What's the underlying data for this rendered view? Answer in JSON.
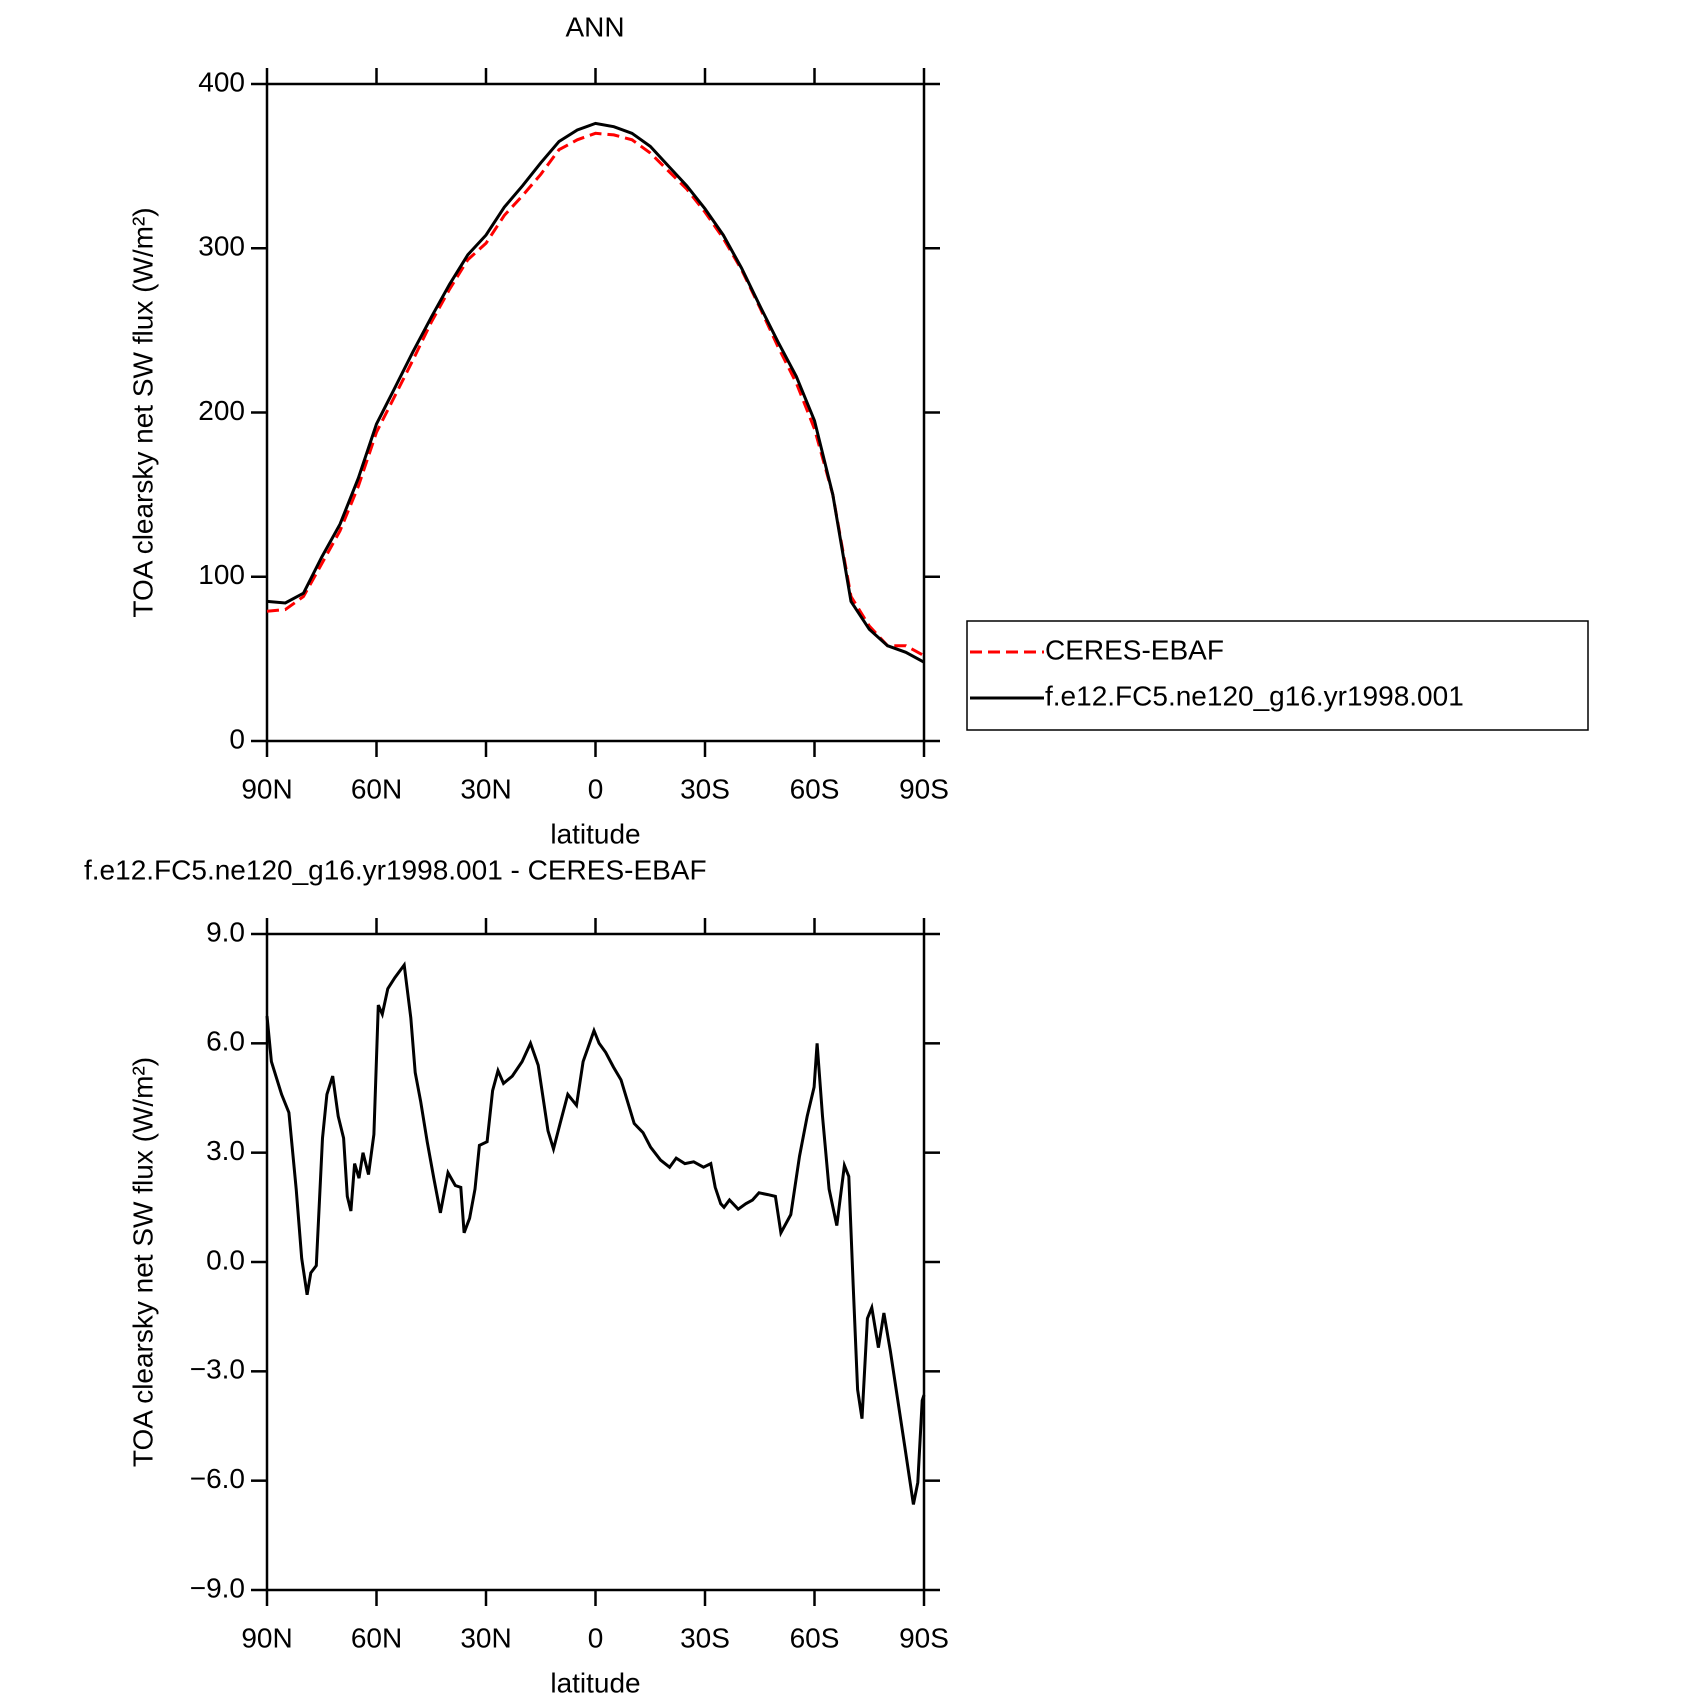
{
  "chart_data": [
    {
      "type": "line",
      "title": "ANN",
      "xlabel": "latitude",
      "ylabel": "TOA clearsky net SW flux (W/m²)",
      "xlim": [
        90,
        -90
      ],
      "xticks": [
        {
          "value": 90,
          "label": "90N"
        },
        {
          "value": 60,
          "label": "60N"
        },
        {
          "value": 30,
          "label": "30N"
        },
        0,
        {
          "value": -30,
          "label": "30S"
        },
        {
          "value": -60,
          "label": "60S"
        },
        {
          "value": -90,
          "label": "90S"
        }
      ],
      "ylim": [
        0,
        400
      ],
      "yticks": [
        0,
        100,
        200,
        300,
        400
      ],
      "x": [
        90,
        85,
        80,
        75,
        70,
        65,
        60,
        55,
        50,
        45,
        40,
        35,
        30,
        25,
        20,
        15,
        10,
        5,
        0,
        -5,
        -10,
        -15,
        -20,
        -25,
        -30,
        -35,
        -40,
        -45,
        -50,
        -55,
        -60,
        -65,
        -70,
        -75,
        -80,
        -85,
        -90
      ],
      "series": [
        {
          "name": "CERES-EBAF",
          "color": "#ff0000",
          "dash": true,
          "values": [
            79,
            80,
            88,
            108,
            128,
            155,
            188,
            210,
            232,
            255,
            275,
            293,
            303,
            320,
            332,
            345,
            360,
            366,
            370,
            369,
            366,
            358,
            347,
            336,
            322,
            306,
            287,
            264,
            240,
            218,
            190,
            150,
            88,
            70,
            58,
            58,
            52
          ]
        },
        {
          "name": "f.e12.FC5.ne120_g16.yr1998.001",
          "color": "#000000",
          "dash": false,
          "values": [
            85,
            84,
            90,
            112,
            132,
            160,
            193,
            215,
            237,
            258,
            278,
            296,
            308,
            325,
            338,
            352,
            365,
            372,
            376,
            374,
            370,
            362,
            350,
            338,
            324,
            308,
            288,
            265,
            243,
            222,
            195,
            150,
            85,
            68,
            58,
            54,
            48
          ]
        }
      ]
    },
    {
      "type": "line",
      "title": "f.e12.FC5.ne120_g16.yr1998.001 - CERES-EBAF",
      "xlabel": "latitude",
      "ylabel": "TOA clearsky net SW flux (W/m²)",
      "xlim": [
        90,
        -90
      ],
      "xticks": [
        {
          "value": 90,
          "label": "90N"
        },
        {
          "value": 60,
          "label": "60N"
        },
        {
          "value": 30,
          "label": "30N"
        },
        0,
        {
          "value": -30,
          "label": "30S"
        },
        {
          "value": -60,
          "label": "60S"
        },
        {
          "value": -90,
          "label": "90S"
        }
      ],
      "ylim": [
        -9,
        9
      ],
      "yticks": [
        {
          "value": -9,
          "label": "−9.0"
        },
        {
          "value": -6,
          "label": "−6.0"
        },
        {
          "value": -3,
          "label": "−3.0"
        },
        {
          "value": 0,
          "label": "0.0"
        },
        {
          "value": 3,
          "label": "3.0"
        },
        {
          "value": 6,
          "label": "6.0"
        },
        {
          "value": 9,
          "label": "9.0"
        }
      ],
      "color": "#000000",
      "x": [
        90,
        88.8,
        86,
        84,
        82,
        80.5,
        79,
        78,
        76.5,
        74.8,
        73.6,
        72,
        70.5,
        69,
        68,
        67,
        66,
        64.8,
        63.7,
        62.2,
        60.7,
        59.5,
        58.4,
        56.9,
        55,
        52.4,
        50.6,
        49.4,
        47.9,
        46.1,
        44.3,
        42.5,
        40.4,
        38.4,
        36.9,
        36,
        34.5,
        33,
        31.8,
        29.7,
        28.2,
        26.7,
        25.2,
        22.8,
        20.1,
        17.8,
        15.7,
        13,
        11.5,
        9.7,
        7.6,
        5.2,
        3.4,
        0.4,
        -1,
        -2.8,
        -4.9,
        -7,
        -9.1,
        -10.6,
        -13,
        -15.1,
        -17.8,
        -20.3,
        -22.1,
        -24.5,
        -26.9,
        -29.6,
        -31.6,
        -32.8,
        -34.3,
        -35.2,
        -36.7,
        -39.1,
        -41.2,
        -43,
        -44.8,
        -47.2,
        -49.3,
        -50.8,
        -53.5,
        -55.9,
        -58,
        -59.9,
        -60.7,
        -62.2,
        -64,
        -66.1,
        -68.2,
        -69.4,
        -70.6,
        -71.8,
        -73,
        -74.5,
        -75.7,
        -77.5,
        -79,
        -80.8,
        -82.6,
        -84.7,
        -87.1,
        -88.3,
        -89.5,
        -90
      ],
      "values": [
        6.75,
        5.5,
        4.6,
        4.1,
        2.0,
        0.1,
        -0.9,
        -0.3,
        -0.1,
        3.4,
        4.6,
        5.1,
        4.0,
        3.4,
        1.8,
        1.4,
        2.7,
        2.3,
        3.0,
        2.4,
        3.5,
        7.05,
        6.8,
        7.5,
        7.8,
        8.15,
        6.7,
        5.2,
        4.4,
        3.3,
        2.3,
        1.35,
        2.45,
        2.1,
        2.05,
        0.8,
        1.2,
        2.0,
        3.2,
        3.3,
        4.7,
        5.25,
        4.9,
        5.1,
        5.5,
        6.0,
        5.4,
        3.6,
        3.1,
        3.8,
        4.6,
        4.3,
        5.5,
        6.35,
        6.0,
        5.75,
        5.35,
        5.0,
        4.3,
        3.8,
        3.55,
        3.15,
        2.8,
        2.6,
        2.85,
        2.7,
        2.75,
        2.6,
        2.7,
        2.05,
        1.6,
        1.5,
        1.7,
        1.45,
        1.6,
        1.7,
        1.9,
        1.85,
        1.8,
        0.8,
        1.3,
        2.9,
        4.0,
        4.8,
        6.0,
        4.0,
        2.0,
        1.0,
        2.65,
        2.35,
        -0.65,
        -3.5,
        -4.3,
        -1.55,
        -1.25,
        -2.35,
        -1.4,
        -2.45,
        -3.65,
        -5.05,
        -6.65,
        -6.05,
        -3.8,
        -3.65
      ]
    }
  ]
}
